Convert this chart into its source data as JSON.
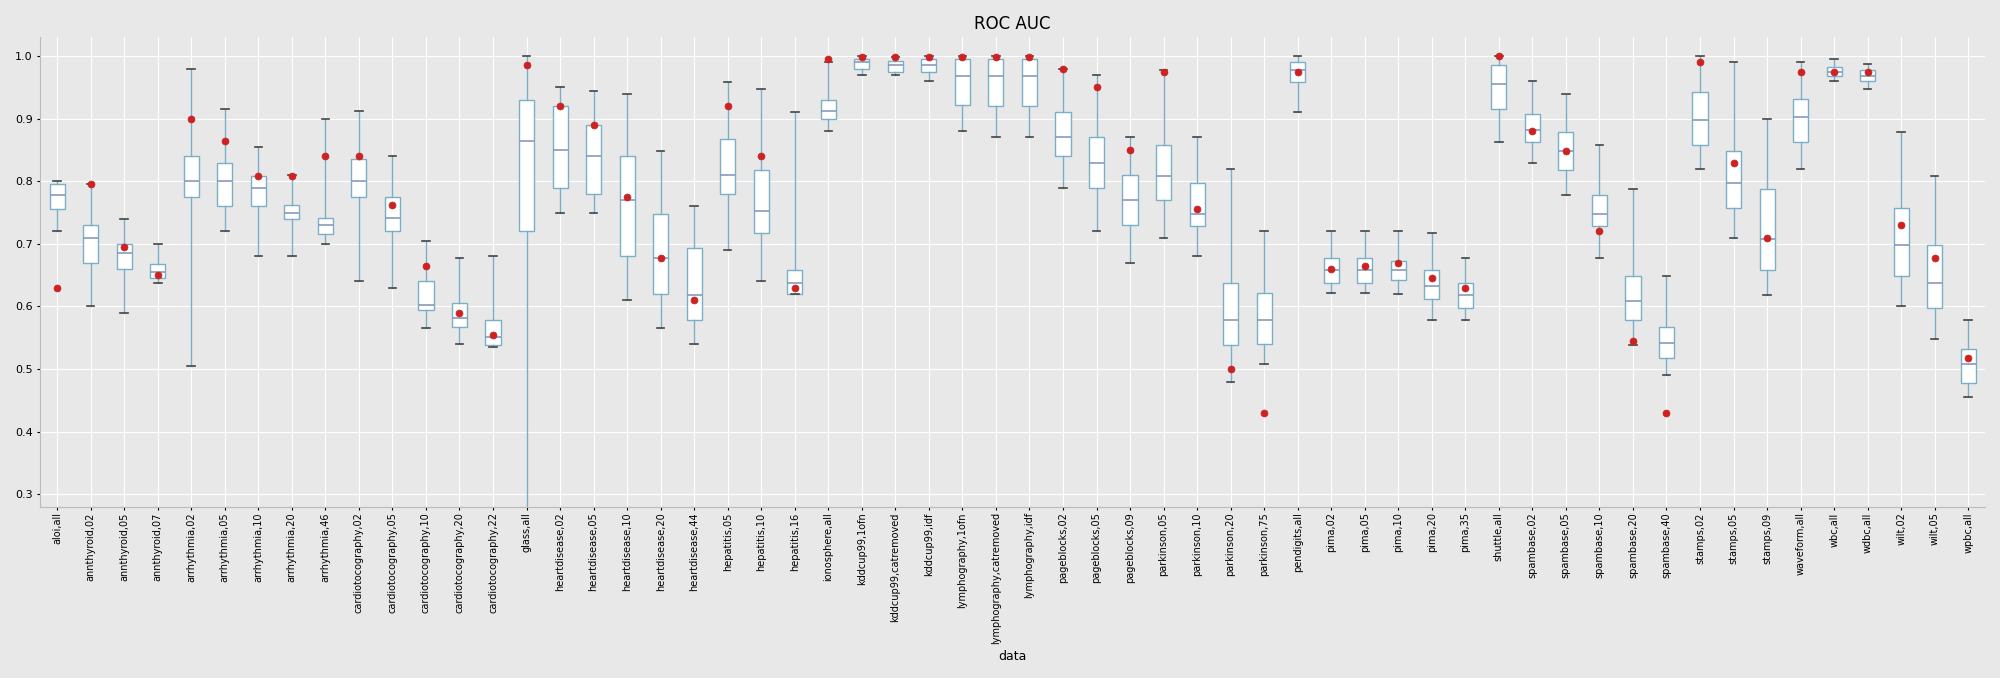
{
  "title": "ROC AUC",
  "xlabel": "data",
  "ylabel": "",
  "ylim": [
    0.28,
    1.03
  ],
  "yticks": [
    0.3,
    0.4,
    0.5,
    0.6,
    0.7,
    0.8,
    0.9,
    1.0
  ],
  "background_color": "#e8e8e8",
  "box_facecolor": "white",
  "box_edgecolor": "#7aafc8",
  "median_color": "#8899bb",
  "whisker_color": "#7aafc8",
  "cap_color": "#333333",
  "mean_color": "#cc2222",
  "figsize": [
    20.0,
    6.78
  ],
  "dpi": 100,
  "datasets": [
    {
      "name": "aloi,all",
      "min": 0.72,
      "q1": 0.755,
      "med": 0.778,
      "q3": 0.795,
      "max": 0.8,
      "mean": 0.63
    },
    {
      "name": "annthyroid,02",
      "min": 0.6,
      "q1": 0.67,
      "med": 0.71,
      "q3": 0.73,
      "max": 0.795,
      "mean": 0.795
    },
    {
      "name": "annthyroid,05",
      "min": 0.59,
      "q1": 0.66,
      "med": 0.685,
      "q3": 0.7,
      "max": 0.74,
      "mean": 0.695
    },
    {
      "name": "annthyroid,07",
      "min": 0.637,
      "q1": 0.645,
      "med": 0.655,
      "q3": 0.668,
      "max": 0.7,
      "mean": 0.65
    },
    {
      "name": "arrhythmia,02",
      "min": 0.505,
      "q1": 0.775,
      "med": 0.8,
      "q3": 0.84,
      "max": 0.98,
      "mean": 0.9
    },
    {
      "name": "arrhythmia,05",
      "min": 0.72,
      "q1": 0.76,
      "med": 0.8,
      "q3": 0.83,
      "max": 0.915,
      "mean": 0.865
    },
    {
      "name": "arrhythmia,10",
      "min": 0.68,
      "q1": 0.76,
      "med": 0.79,
      "q3": 0.808,
      "max": 0.855,
      "mean": 0.808
    },
    {
      "name": "arrhythmia,20",
      "min": 0.68,
      "q1": 0.74,
      "med": 0.75,
      "q3": 0.762,
      "max": 0.81,
      "mean": 0.808
    },
    {
      "name": "arrhythmia,46",
      "min": 0.7,
      "q1": 0.715,
      "med": 0.73,
      "q3": 0.742,
      "max": 0.9,
      "mean": 0.84
    },
    {
      "name": "cardiotocography,02",
      "min": 0.64,
      "q1": 0.775,
      "med": 0.8,
      "q3": 0.835,
      "max": 0.912,
      "mean": 0.84
    },
    {
      "name": "cardiotocography,05",
      "min": 0.63,
      "q1": 0.72,
      "med": 0.742,
      "q3": 0.775,
      "max": 0.84,
      "mean": 0.762
    },
    {
      "name": "cardiotocography,10",
      "min": 0.565,
      "q1": 0.595,
      "med": 0.602,
      "q3": 0.64,
      "max": 0.705,
      "mean": 0.665
    },
    {
      "name": "cardiotocography,20",
      "min": 0.54,
      "q1": 0.568,
      "med": 0.582,
      "q3": 0.605,
      "max": 0.678,
      "mean": 0.59
    },
    {
      "name": "cardiotocography,22",
      "min": 0.535,
      "q1": 0.538,
      "med": 0.552,
      "q3": 0.578,
      "max": 0.68,
      "mean": 0.555
    },
    {
      "name": "glass,all",
      "min": 0.27,
      "q1": 0.72,
      "med": 0.865,
      "q3": 0.93,
      "max": 1.0,
      "mean": 0.985
    },
    {
      "name": "heartdisease,02",
      "min": 0.75,
      "q1": 0.79,
      "med": 0.85,
      "q3": 0.92,
      "max": 0.95,
      "mean": 0.92
    },
    {
      "name": "heartdisease,05",
      "min": 0.75,
      "q1": 0.78,
      "med": 0.84,
      "q3": 0.89,
      "max": 0.945,
      "mean": 0.89
    },
    {
      "name": "heartdisease,10",
      "min": 0.61,
      "q1": 0.68,
      "med": 0.77,
      "q3": 0.84,
      "max": 0.94,
      "mean": 0.775
    },
    {
      "name": "heartdisease,20",
      "min": 0.565,
      "q1": 0.62,
      "med": 0.678,
      "q3": 0.748,
      "max": 0.848,
      "mean": 0.678
    },
    {
      "name": "heartdisease,44",
      "min": 0.54,
      "q1": 0.578,
      "med": 0.618,
      "q3": 0.693,
      "max": 0.76,
      "mean": 0.61
    },
    {
      "name": "hepatitis,05",
      "min": 0.69,
      "q1": 0.78,
      "med": 0.81,
      "q3": 0.868,
      "max": 0.958,
      "mean": 0.92
    },
    {
      "name": "hepatitis,10",
      "min": 0.64,
      "q1": 0.718,
      "med": 0.752,
      "q3": 0.818,
      "max": 0.948,
      "mean": 0.84
    },
    {
      "name": "hepatitis,16",
      "min": 0.62,
      "q1": 0.62,
      "med": 0.638,
      "q3": 0.658,
      "max": 0.91,
      "mean": 0.63
    },
    {
      "name": "ionosphere,all",
      "min": 0.88,
      "q1": 0.9,
      "med": 0.912,
      "q3": 0.93,
      "max": 0.99,
      "mean": 0.995
    },
    {
      "name": "kddcup99,1ofn",
      "min": 0.97,
      "q1": 0.98,
      "med": 0.99,
      "q3": 0.995,
      "max": 1.0,
      "mean": 0.998
    },
    {
      "name": "kddcup99,catremoved",
      "min": 0.97,
      "q1": 0.975,
      "med": 0.985,
      "q3": 0.992,
      "max": 0.998,
      "mean": 0.998
    },
    {
      "name": "kddcup99,idf",
      "min": 0.96,
      "q1": 0.975,
      "med": 0.985,
      "q3": 0.995,
      "max": 1.0,
      "mean": 0.998
    },
    {
      "name": "lymphography,1ofn",
      "min": 0.88,
      "q1": 0.922,
      "med": 0.968,
      "q3": 0.995,
      "max": 1.0,
      "mean": 0.998
    },
    {
      "name": "lymphography,catremoved",
      "min": 0.87,
      "q1": 0.92,
      "med": 0.968,
      "q3": 0.995,
      "max": 1.0,
      "mean": 0.998
    },
    {
      "name": "lymphography,idf",
      "min": 0.87,
      "q1": 0.92,
      "med": 0.968,
      "q3": 0.995,
      "max": 1.0,
      "mean": 0.998
    },
    {
      "name": "pageblocks,02",
      "min": 0.79,
      "q1": 0.84,
      "med": 0.87,
      "q3": 0.91,
      "max": 0.98,
      "mean": 0.98
    },
    {
      "name": "pageblocks,05",
      "min": 0.72,
      "q1": 0.79,
      "med": 0.83,
      "q3": 0.87,
      "max": 0.97,
      "mean": 0.95
    },
    {
      "name": "pageblocks,09",
      "min": 0.67,
      "q1": 0.73,
      "med": 0.77,
      "q3": 0.81,
      "max": 0.87,
      "mean": 0.85
    },
    {
      "name": "parkinson,05",
      "min": 0.71,
      "q1": 0.77,
      "med": 0.808,
      "q3": 0.858,
      "max": 0.978,
      "mean": 0.975
    },
    {
      "name": "parkinson,10",
      "min": 0.68,
      "q1": 0.728,
      "med": 0.748,
      "q3": 0.798,
      "max": 0.87,
      "mean": 0.755
    },
    {
      "name": "parkinson,20",
      "min": 0.48,
      "q1": 0.538,
      "med": 0.578,
      "q3": 0.638,
      "max": 0.82,
      "mean": 0.5
    },
    {
      "name": "parkinson,75",
      "min": 0.508,
      "q1": 0.54,
      "med": 0.578,
      "q3": 0.622,
      "max": 0.72,
      "mean": 0.43
    },
    {
      "name": "pendigits,all",
      "min": 0.91,
      "q1": 0.958,
      "med": 0.978,
      "q3": 0.99,
      "max": 1.0,
      "mean": 0.975
    },
    {
      "name": "pima,02",
      "min": 0.622,
      "q1": 0.638,
      "med": 0.658,
      "q3": 0.678,
      "max": 0.72,
      "mean": 0.66
    },
    {
      "name": "pima,05",
      "min": 0.622,
      "q1": 0.638,
      "med": 0.658,
      "q3": 0.678,
      "max": 0.72,
      "mean": 0.665
    },
    {
      "name": "pima,10",
      "min": 0.62,
      "q1": 0.642,
      "med": 0.658,
      "q3": 0.672,
      "max": 0.72,
      "mean": 0.67
    },
    {
      "name": "pima,20",
      "min": 0.578,
      "q1": 0.612,
      "med": 0.632,
      "q3": 0.658,
      "max": 0.718,
      "mean": 0.645
    },
    {
      "name": "pima,35",
      "min": 0.578,
      "q1": 0.598,
      "med": 0.618,
      "q3": 0.638,
      "max": 0.678,
      "mean": 0.63
    },
    {
      "name": "shuttle,all",
      "min": 0.862,
      "q1": 0.915,
      "med": 0.955,
      "q3": 0.985,
      "max": 1.0,
      "mean": 1.0
    },
    {
      "name": "spambase,02",
      "min": 0.83,
      "q1": 0.862,
      "med": 0.882,
      "q3": 0.908,
      "max": 0.96,
      "mean": 0.88
    },
    {
      "name": "spambase,05",
      "min": 0.778,
      "q1": 0.818,
      "med": 0.848,
      "q3": 0.878,
      "max": 0.94,
      "mean": 0.848
    },
    {
      "name": "spambase,10",
      "min": 0.678,
      "q1": 0.728,
      "med": 0.748,
      "q3": 0.778,
      "max": 0.858,
      "mean": 0.72
    },
    {
      "name": "spambase,20",
      "min": 0.538,
      "q1": 0.578,
      "med": 0.608,
      "q3": 0.648,
      "max": 0.788,
      "mean": 0.545
    },
    {
      "name": "spambase,40",
      "min": 0.49,
      "q1": 0.518,
      "med": 0.542,
      "q3": 0.568,
      "max": 0.648,
      "mean": 0.43
    },
    {
      "name": "stamps,02",
      "min": 0.82,
      "q1": 0.858,
      "med": 0.898,
      "q3": 0.942,
      "max": 1.0,
      "mean": 0.99
    },
    {
      "name": "stamps,05",
      "min": 0.71,
      "q1": 0.758,
      "med": 0.798,
      "q3": 0.848,
      "max": 0.99,
      "mean": 0.83
    },
    {
      "name": "stamps,09",
      "min": 0.618,
      "q1": 0.658,
      "med": 0.708,
      "q3": 0.788,
      "max": 0.9,
      "mean": 0.71
    },
    {
      "name": "waveform,all",
      "min": 0.82,
      "q1": 0.862,
      "med": 0.902,
      "q3": 0.932,
      "max": 0.99,
      "mean": 0.975
    },
    {
      "name": "wbc,all",
      "min": 0.96,
      "q1": 0.968,
      "med": 0.975,
      "q3": 0.982,
      "max": 0.995,
      "mean": 0.975
    },
    {
      "name": "wdbc,all",
      "min": 0.948,
      "q1": 0.96,
      "med": 0.968,
      "q3": 0.978,
      "max": 0.988,
      "mean": 0.975
    },
    {
      "name": "wilt,02",
      "min": 0.6,
      "q1": 0.648,
      "med": 0.698,
      "q3": 0.758,
      "max": 0.878,
      "mean": 0.73
    },
    {
      "name": "wilt,05",
      "min": 0.548,
      "q1": 0.598,
      "med": 0.638,
      "q3": 0.698,
      "max": 0.808,
      "mean": 0.678
    },
    {
      "name": "wpbc,all",
      "min": 0.455,
      "q1": 0.478,
      "med": 0.508,
      "q3": 0.532,
      "max": 0.578,
      "mean": 0.518
    }
  ]
}
